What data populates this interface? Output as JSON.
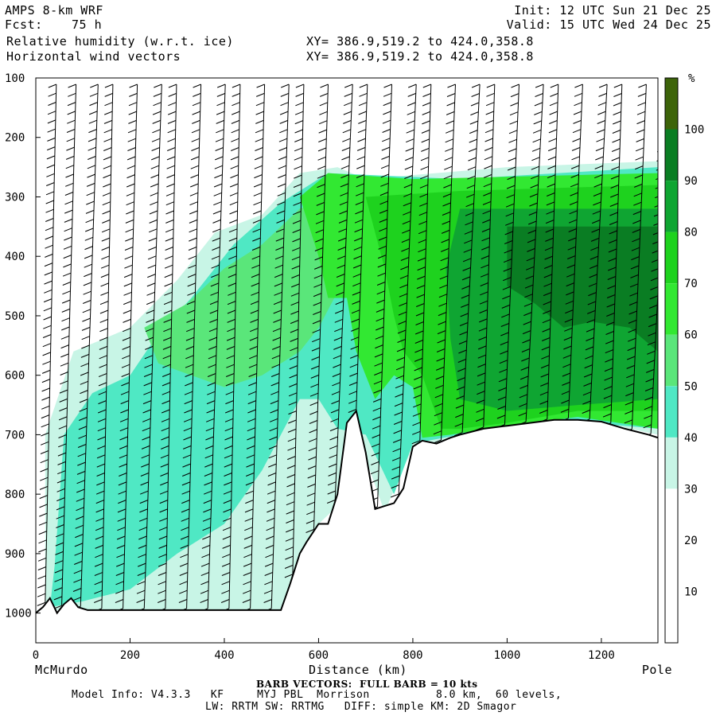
{
  "header": {
    "model": "AMPS 8-km WRF",
    "fcst_label": "Fcst:",
    "fcst_value": "75 h",
    "var1": "Relative humidity (w.r.t. ice)",
    "var2": "Horizontal wind vectors",
    "xy1": "XY= 386.9,519.2 to 424.0,358.8",
    "xy2": "XY= 386.9,519.2 to 424.0,358.8",
    "init": "Init: 12 UTC Sun 21 Dec 25",
    "valid": "Valid: 15 UTC Wed 24 Dec 25"
  },
  "footer": {
    "left_label": "McMurdo",
    "right_label": "Pole",
    "barb_note": "BARB VECTORS:  FULL BARB = 10 kts",
    "model_info": "Model Info: V4.3.3   KF     MYJ PBL  Morrison          8.0 km,  60 levels,",
    "physics": "LW: RRTM SW: RRTMG   DIFF: simple KM: 2D Smagor"
  },
  "chart_data": {
    "type": "heatmap",
    "xlabel": "Distance (km)",
    "ylabel": "",
    "xlim": [
      0,
      1320
    ],
    "ylim": [
      1050,
      100
    ],
    "x_ticks": [
      0,
      200,
      400,
      600,
      800,
      1000,
      1200
    ],
    "y_ticks": [
      100,
      200,
      300,
      400,
      500,
      600,
      700,
      800,
      900,
      1000
    ],
    "colorbar": {
      "unit": "%",
      "levels": [
        10,
        20,
        30,
        40,
        50,
        60,
        70,
        80,
        90,
        100
      ],
      "colors": [
        "#ffffff",
        "#ffffff",
        "#ffffff",
        "#c8f5e6",
        "#4fe8c4",
        "#5ae67a",
        "#32e832",
        "#1ed21e",
        "#0fa532",
        "#0a7d23",
        "#3d640a"
      ]
    },
    "terrain_profile": {
      "x": [
        0,
        15,
        30,
        45,
        60,
        75,
        90,
        110,
        150,
        200,
        300,
        400,
        480,
        520,
        540,
        560,
        575,
        600,
        620,
        640,
        660,
        680,
        700,
        720,
        740,
        760,
        780,
        800,
        820,
        850,
        880,
        900,
        950,
        1000,
        1050,
        1100,
        1150,
        1200,
        1250,
        1300,
        1320
      ],
      "p": [
        1000,
        990,
        975,
        1000,
        985,
        975,
        990,
        995,
        995,
        995,
        995,
        995,
        995,
        995,
        950,
        900,
        880,
        850,
        850,
        800,
        680,
        660,
        730,
        825,
        820,
        815,
        790,
        720,
        710,
        715,
        705,
        700,
        690,
        685,
        680,
        675,
        675,
        678,
        690,
        700,
        705
      ]
    },
    "rh_regions": [
      {
        "level": 30,
        "poly": [
          [
            20,
            1000
          ],
          [
            20,
            700
          ],
          [
            80,
            560
          ],
          [
            200,
            520
          ],
          [
            300,
            440
          ],
          [
            380,
            360
          ],
          [
            480,
            330
          ],
          [
            560,
            260
          ],
          [
            640,
            250
          ],
          [
            700,
            270
          ],
          [
            1000,
            250
          ],
          [
            1320,
            240
          ],
          [
            1320,
            700
          ],
          [
            1200,
            680
          ],
          [
            1000,
            690
          ],
          [
            880,
            710
          ],
          [
            800,
            720
          ],
          [
            740,
            830
          ],
          [
            700,
            740
          ],
          [
            660,
            680
          ],
          [
            640,
            820
          ],
          [
            600,
            850
          ],
          [
            560,
            900
          ],
          [
            540,
            995
          ],
          [
            0,
            995
          ]
        ]
      },
      {
        "level": 40,
        "poly": [
          [
            30,
            990
          ],
          [
            40,
            920
          ],
          [
            60,
            700
          ],
          [
            120,
            630
          ],
          [
            200,
            600
          ],
          [
            260,
            530
          ],
          [
            330,
            470
          ],
          [
            420,
            380
          ],
          [
            520,
            310
          ],
          [
            620,
            260
          ],
          [
            900,
            270
          ],
          [
            1320,
            250
          ],
          [
            1320,
            690
          ],
          [
            1100,
            675
          ],
          [
            900,
            700
          ],
          [
            800,
            715
          ],
          [
            760,
            800
          ],
          [
            700,
            700
          ],
          [
            640,
            690
          ],
          [
            600,
            640
          ],
          [
            560,
            640
          ],
          [
            520,
            700
          ],
          [
            480,
            760
          ],
          [
            400,
            850
          ],
          [
            300,
            900
          ],
          [
            200,
            960
          ],
          [
            100,
            980
          ]
        ]
      },
      {
        "level": 50,
        "poly": [
          [
            230,
            520
          ],
          [
            320,
            480
          ],
          [
            400,
            420
          ],
          [
            480,
            380
          ],
          [
            560,
            320
          ],
          [
            620,
            300
          ],
          [
            700,
            300
          ],
          [
            760,
            320
          ],
          [
            700,
            420
          ],
          [
            640,
            460
          ],
          [
            600,
            520
          ],
          [
            560,
            560
          ],
          [
            480,
            600
          ],
          [
            400,
            620
          ],
          [
            330,
            600
          ],
          [
            260,
            580
          ]
        ]
      },
      {
        "level": 60,
        "poly": [
          [
            560,
            300
          ],
          [
            620,
            260
          ],
          [
            800,
            270
          ],
          [
            1320,
            260
          ],
          [
            1320,
            690
          ],
          [
            1150,
            670
          ],
          [
            1000,
            685
          ],
          [
            880,
            700
          ],
          [
            820,
            705
          ],
          [
            800,
            620
          ],
          [
            760,
            600
          ],
          [
            720,
            640
          ],
          [
            680,
            560
          ],
          [
            660,
            470
          ],
          [
            620,
            470
          ],
          [
            600,
            400
          ]
        ]
      },
      {
        "level": 70,
        "poly": [
          [
            700,
            300
          ],
          [
            900,
            290
          ],
          [
            1320,
            280
          ],
          [
            1320,
            660
          ],
          [
            1150,
            660
          ],
          [
            1000,
            680
          ],
          [
            900,
            690
          ],
          [
            860,
            690
          ],
          [
            820,
            600
          ],
          [
            780,
            560
          ],
          [
            760,
            500
          ],
          [
            740,
            420
          ]
        ]
      },
      {
        "level": 80,
        "poly": [
          [
            900,
            320
          ],
          [
            1320,
            320
          ],
          [
            1320,
            640
          ],
          [
            1150,
            650
          ],
          [
            1000,
            660
          ],
          [
            900,
            640
          ],
          [
            880,
            540
          ],
          [
            870,
            420
          ]
        ]
      },
      {
        "level": 90,
        "poly": [
          [
            1000,
            350
          ],
          [
            1320,
            350
          ],
          [
            1320,
            560
          ],
          [
            1260,
            520
          ],
          [
            1180,
            510
          ],
          [
            1120,
            520
          ],
          [
            1060,
            480
          ],
          [
            1000,
            450
          ]
        ]
      }
    ],
    "wind_columns_x": [
      20,
      55,
      95,
      140,
      185,
      230,
      275,
      320,
      365,
      410,
      455,
      500,
      545,
      590,
      635,
      680,
      725,
      770,
      815,
      860,
      905,
      950,
      995,
      1040,
      1085,
      1130,
      1175,
      1220,
      1265,
      1305
    ]
  }
}
